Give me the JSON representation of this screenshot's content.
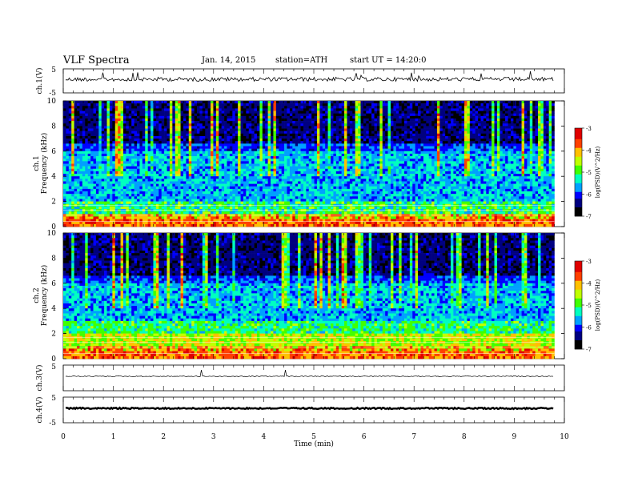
{
  "header": {
    "title": "VLF Spectra",
    "date": "Jan. 14, 2015",
    "station": "station=ATH",
    "start": "start UT = 14:20:0"
  },
  "chart_data": [
    {
      "type": "line",
      "panel": "ch1",
      "ylabel": "ch.1(V)",
      "ylim": [
        -5,
        5
      ],
      "yticks": [
        "5",
        "-5"
      ],
      "xlim": [
        0,
        10
      ],
      "approx_level": 0.5,
      "description": "noisy waveform near constant level"
    },
    {
      "type": "heatmap",
      "panel": "ch1-spectrogram",
      "ylabel": "ch.1 Frequency (kHz)",
      "ylim": [
        0,
        10
      ],
      "yticks": [
        "0",
        "2",
        "4",
        "6",
        "8",
        "10"
      ],
      "xlim": [
        0,
        10
      ],
      "data_end_min": 9.8,
      "colorbar": {
        "label": "log(PSD)(V^2/Hz)",
        "range": [
          -7,
          -3
        ],
        "ticks": [
          "-3",
          "-4",
          "-5",
          "-6",
          "-7"
        ]
      }
    },
    {
      "type": "heatmap",
      "panel": "ch2-spectrogram",
      "ylabel": "ch.2 Frequency (kHz)",
      "ylim": [
        0,
        10
      ],
      "yticks": [
        "0",
        "2",
        "4",
        "6",
        "8",
        "10"
      ],
      "xlim": [
        0,
        10
      ],
      "data_end_min": 9.8,
      "colorbar": {
        "label": "log(PSD)(V^2/Hz)",
        "range": [
          -7,
          -3
        ],
        "ticks": [
          "-3",
          "-4",
          "-5",
          "-6",
          "-7"
        ]
      }
    },
    {
      "type": "line",
      "panel": "ch3",
      "ylabel": "ch.3(V)",
      "ylim": [
        -5,
        5
      ],
      "yticks": [
        "5"
      ],
      "xlim": [
        0,
        10
      ],
      "approx_level": 0.5
    },
    {
      "type": "line",
      "panel": "ch4",
      "ylabel": "ch.4(V)",
      "ylim": [
        -5,
        5
      ],
      "yticks": [
        "5",
        "-5"
      ],
      "xlim": [
        0,
        10
      ],
      "approx_level": 0.5
    }
  ],
  "xaxis": {
    "label": "Time (min)",
    "ticks": [
      "0",
      "1",
      "2",
      "3",
      "4",
      "5",
      "6",
      "7",
      "8",
      "9",
      "10"
    ]
  },
  "colors": {
    "line": "#000000",
    "axes": "#000000",
    "colormap": [
      "#000000",
      "#000080",
      "#0000ff",
      "#00a0ff",
      "#00ffc0",
      "#40ff00",
      "#c0ff00",
      "#ffc000",
      "#ff4000",
      "#e00000",
      "#ffffff"
    ]
  }
}
